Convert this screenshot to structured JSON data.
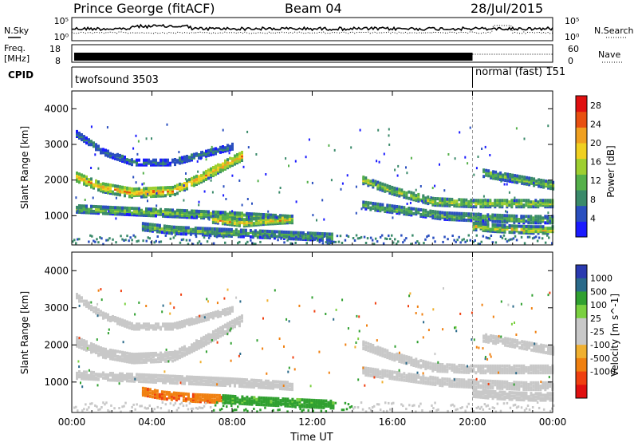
{
  "header": {
    "title": "Prince George (fitACF)",
    "beam": "Beam 04",
    "date": "28/Jul/2015"
  },
  "noise_panel": {
    "left_label": "N.Sky",
    "right_label": "N.Search",
    "left_ticks": [
      "10^5",
      "10^0"
    ],
    "right_ticks": [
      "10^5",
      "10^0"
    ]
  },
  "freq_panel": {
    "left_label_line1": "Freq.",
    "left_label_line2": "[MHz]",
    "right_label": "Nave",
    "left_ticks": [
      "18",
      "8"
    ],
    "right_ticks": [
      "60",
      "0"
    ]
  },
  "cpid_panel": {
    "label": "CPID",
    "modes": [
      {
        "name": "twofsound 3503",
        "start_h": 0,
        "end_h": 20
      },
      {
        "name": "normal (fast) 151",
        "start_h": 20,
        "end_h": 24
      }
    ]
  },
  "colors": {
    "power_scale": [
      "#1a1aff",
      "#2a4fbf",
      "#3a8a6a",
      "#55b04a",
      "#9ecf30",
      "#f0d020",
      "#f0a020",
      "#e85010",
      "#e01010"
    ],
    "velocity_scale": [
      "#e01010",
      "#f04010",
      "#f08010",
      "#f0b030",
      "#c8c8c8",
      "#c8c8c8",
      "#7ad040",
      "#30a030",
      "#2a6a8a",
      "#2a3ab0"
    ]
  },
  "chart_data": [
    {
      "type": "heatmap",
      "title": "Power",
      "xlabel": "",
      "ylabel": "Slant Range [km]",
      "colorbar_label": "Power [dB]",
      "colorbar_ticks": [
        "4",
        "8",
        "12",
        "16",
        "20",
        "24",
        "28"
      ],
      "colorbar_range": [
        0,
        30
      ],
      "xlim_hours": [
        0,
        24
      ],
      "ylim_km": [
        180,
        4500
      ],
      "x_ticks": [
        "00:00",
        "04:00",
        "08:00",
        "12:00",
        "16:00",
        "20:00",
        "00:00"
      ],
      "y_ticks": [
        1000,
        2000,
        3000,
        4000
      ],
      "bands": [
        {
          "pts": [
            [
              0.2,
              3300
            ],
            [
              1.5,
              2800
            ],
            [
              3.0,
              2500
            ],
            [
              5.0,
              2500
            ],
            [
              7.0,
              2800
            ],
            [
              8.0,
              2950
            ]
          ],
          "width_km": 150,
          "value": 8
        },
        {
          "pts": [
            [
              0.2,
              2100
            ],
            [
              1.5,
              1800
            ],
            [
              3.0,
              1650
            ],
            [
              5.0,
              1700
            ],
            [
              6.5,
              2100
            ],
            [
              7.8,
              2500
            ],
            [
              8.5,
              2700
            ]
          ],
          "width_km": 260,
          "value": 22
        },
        {
          "pts": [
            [
              0.2,
              1200
            ],
            [
              2.0,
              1150
            ],
            [
              4.0,
              1100
            ],
            [
              6.0,
              1050
            ],
            [
              8.0,
              1000
            ],
            [
              9.5,
              950
            ],
            [
              11.0,
              900
            ]
          ],
          "width_km": 200,
          "value": 14
        },
        {
          "pts": [
            [
              3.5,
              700
            ],
            [
              5.0,
              600
            ],
            [
              7.0,
              550
            ],
            [
              9.0,
              500
            ],
            [
              11.0,
              450
            ],
            [
              13.0,
              400
            ]
          ],
          "width_km": 200,
          "value": 12
        },
        {
          "pts": [
            [
              7.0,
              900
            ],
            [
              8.5,
              800
            ],
            [
              9.5,
              850
            ],
            [
              11.0,
              900
            ]
          ],
          "width_km": 180,
          "value": 21
        },
        {
          "pts": [
            [
              14.5,
              2000
            ],
            [
              16.0,
              1700
            ],
            [
              18.0,
              1400
            ],
            [
              20.0,
              1350
            ],
            [
              22.0,
              1350
            ],
            [
              24.0,
              1350
            ]
          ],
          "width_km": 200,
          "value": 16
        },
        {
          "pts": [
            [
              14.5,
              1300
            ],
            [
              16.5,
              1150
            ],
            [
              18.5,
              1000
            ],
            [
              20.5,
              950
            ],
            [
              22.5,
              900
            ],
            [
              24.0,
              900
            ]
          ],
          "width_km": 200,
          "value": 12
        },
        {
          "pts": [
            [
              20.0,
              700
            ],
            [
              21.0,
              650
            ],
            [
              22.0,
              620
            ],
            [
              23.0,
              600
            ],
            [
              24.0,
              600
            ]
          ],
          "width_km": 180,
          "value": 18
        },
        {
          "pts": [
            [
              20.5,
              2200
            ],
            [
              22.0,
              2050
            ],
            [
              24.0,
              1850
            ]
          ],
          "width_km": 200,
          "value": 14
        }
      ]
    },
    {
      "type": "heatmap",
      "title": "Velocity",
      "xlabel": "Time UT",
      "ylabel": "Slant Range [km]",
      "colorbar_label": "Velocity [m s^-1]",
      "colorbar_ticks": [
        "-1000",
        "-500",
        "-100",
        "-25",
        "25",
        "100",
        "500",
        "1000"
      ],
      "colorbar_range": [
        -1500,
        1500
      ],
      "xlim_hours": [
        0,
        24
      ],
      "ylim_km": [
        180,
        4500
      ],
      "x_ticks": [
        "00:00",
        "04:00",
        "08:00",
        "12:00",
        "16:00",
        "20:00",
        "00:00"
      ],
      "y_ticks": [
        1000,
        2000,
        3000,
        4000
      ],
      "bands": [
        {
          "pts": [
            [
              0.2,
              3300
            ],
            [
              1.5,
              2800
            ],
            [
              3.0,
              2500
            ],
            [
              5.0,
              2500
            ],
            [
              7.0,
              2800
            ],
            [
              8.0,
              2950
            ]
          ],
          "width_km": 150,
          "value": 0
        },
        {
          "pts": [
            [
              0.2,
              2100
            ],
            [
              1.5,
              1800
            ],
            [
              3.0,
              1650
            ],
            [
              5.0,
              1700
            ],
            [
              6.5,
              2100
            ],
            [
              7.8,
              2500
            ],
            [
              8.5,
              2700
            ]
          ],
          "width_km": 260,
          "value": 0
        },
        {
          "pts": [
            [
              0.2,
              1200
            ],
            [
              2.0,
              1150
            ],
            [
              4.0,
              1100
            ],
            [
              6.0,
              1050
            ],
            [
              8.0,
              1000
            ],
            [
              9.5,
              950
            ],
            [
              11.0,
              900
            ]
          ],
          "width_km": 200,
          "value": 0
        },
        {
          "pts": [
            [
              3.5,
              750
            ],
            [
              4.5,
              650
            ],
            [
              6.0,
              580
            ],
            [
              7.5,
              550
            ]
          ],
          "width_km": 200,
          "value": -400
        },
        {
          "pts": [
            [
              7.5,
              550
            ],
            [
              9.0,
              500
            ],
            [
              11.0,
              450
            ],
            [
              13.0,
              400
            ]
          ],
          "width_km": 200,
          "value": 150
        },
        {
          "pts": [
            [
              14.5,
              2000
            ],
            [
              16.0,
              1700
            ],
            [
              18.0,
              1400
            ],
            [
              20.0,
              1350
            ],
            [
              22.0,
              1350
            ],
            [
              24.0,
              1350
            ]
          ],
          "width_km": 200,
          "value": 0
        },
        {
          "pts": [
            [
              14.5,
              1300
            ],
            [
              16.5,
              1150
            ],
            [
              18.5,
              1000
            ],
            [
              20.5,
              950
            ],
            [
              22.5,
              900
            ],
            [
              24.0,
              900
            ]
          ],
          "width_km": 200,
          "value": 0
        },
        {
          "pts": [
            [
              20.0,
              700
            ],
            [
              21.0,
              650
            ],
            [
              22.0,
              620
            ],
            [
              23.0,
              600
            ],
            [
              24.0,
              600
            ]
          ],
          "width_km": 180,
          "value": 0
        },
        {
          "pts": [
            [
              20.5,
              2200
            ],
            [
              22.0,
              2050
            ],
            [
              24.0,
              1850
            ]
          ],
          "width_km": 200,
          "value": 0
        }
      ]
    }
  ]
}
